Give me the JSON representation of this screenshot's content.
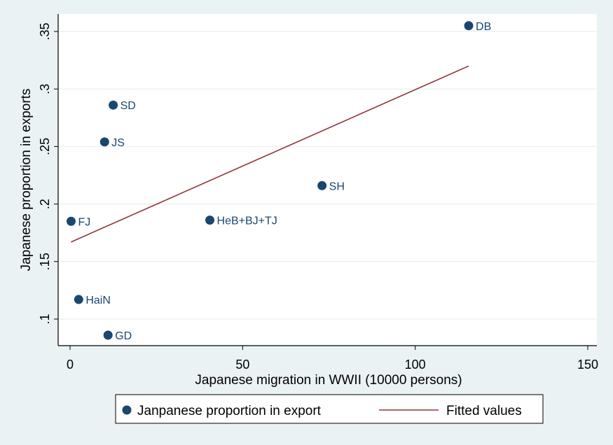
{
  "chart_data": {
    "type": "scatter",
    "xlabel": "Japanese migration in WWII (10000 persons)",
    "ylabel": "Japanese proportion in exports",
    "xlim": [
      0,
      150
    ],
    "ylim": [
      0.08,
      0.36
    ],
    "x_ticks": [
      0,
      50,
      100,
      150
    ],
    "x_tick_labels": [
      "0",
      "50",
      "100",
      "150"
    ],
    "y_ticks": [
      0.1,
      0.15,
      0.2,
      0.25,
      0.3,
      0.35
    ],
    "y_tick_labels": [
      ".1",
      ".15",
      ".2",
      ".25",
      ".3",
      ".35"
    ],
    "grid": "horizontal",
    "legend_position": "bottom",
    "series": [
      {
        "name": "Janpanese proportion in export",
        "type": "scatter",
        "color": "#1a476f",
        "points": [
          {
            "label": "DB",
            "x": 115.5,
            "y": 0.355
          },
          {
            "label": "SD",
            "x": 12.5,
            "y": 0.286
          },
          {
            "label": "JS",
            "x": 10,
            "y": 0.254
          },
          {
            "label": "SH",
            "x": 73,
            "y": 0.216
          },
          {
            "label": "FJ",
            "x": 0.3,
            "y": 0.185
          },
          {
            "label": "HeB+BJ+TJ",
            "x": 40.5,
            "y": 0.186
          },
          {
            "label": "HaiN",
            "x": 2.5,
            "y": 0.117
          },
          {
            "label": "GD",
            "x": 11,
            "y": 0.086
          }
        ]
      },
      {
        "name": "Fitted values",
        "type": "line",
        "color": "#90353b",
        "points": [
          {
            "x": 0.3,
            "y": 0.167
          },
          {
            "x": 115.5,
            "y": 0.32
          }
        ]
      }
    ]
  }
}
